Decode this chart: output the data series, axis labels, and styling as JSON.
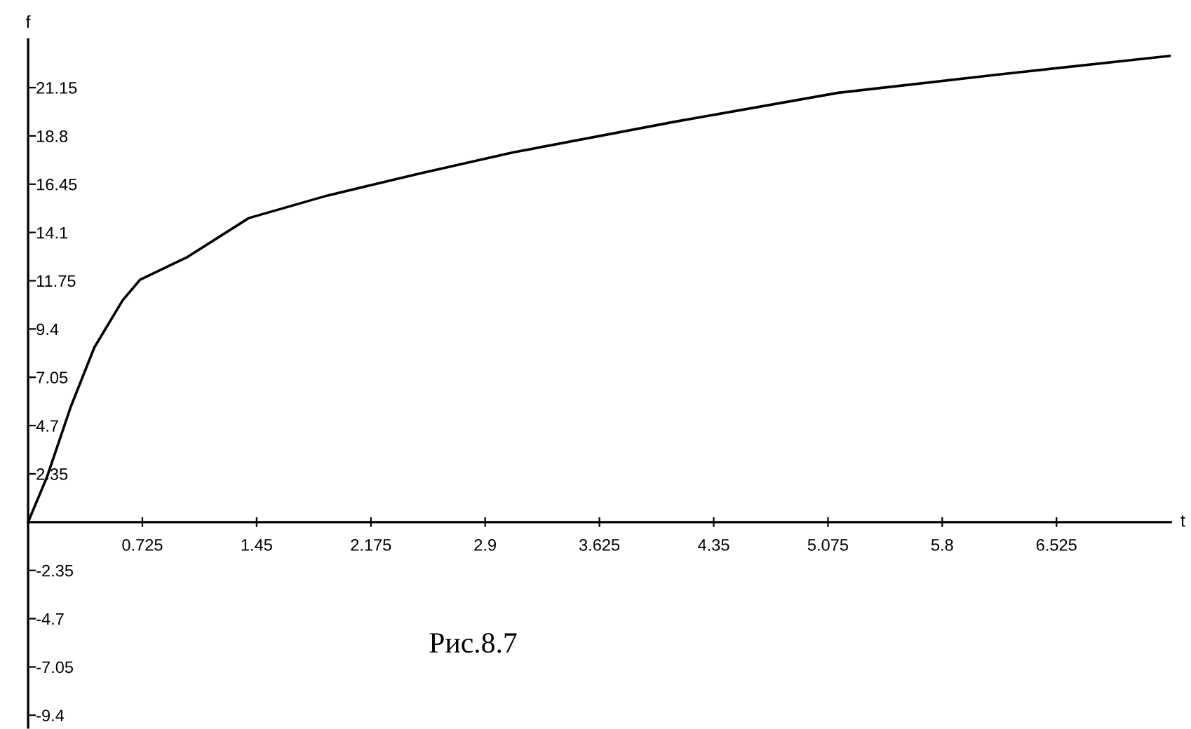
{
  "chart_data": {
    "type": "line",
    "xlabel": "t",
    "ylabel": "f",
    "annotations": [
      "Рис.8.7"
    ],
    "x": [
      0,
      0.12,
      0.27,
      0.42,
      0.6,
      0.71,
      1.01,
      1.4,
      1.9,
      2.5,
      3.08,
      4.11,
      5.14,
      6.17,
      7.25
    ],
    "series": [
      {
        "color": "#000000",
        "values": [
          0,
          2.2,
          5.6,
          8.5,
          10.8,
          11.8,
          12.9,
          14.8,
          15.9,
          17.0,
          18.0,
          19.5,
          20.9,
          21.8,
          22.7
        ]
      }
    ],
    "xlim": [
      0,
      7.25
    ],
    "ylim": [
      -10,
      23.5
    ],
    "xticks": [
      0.725,
      1.45,
      2.175,
      2.9,
      3.625,
      4.35,
      5.075,
      5.8,
      6.525
    ],
    "yticks": [
      -9.4,
      -7.05,
      -4.7,
      -2.35,
      2.35,
      4.7,
      7.05,
      9.4,
      11.75,
      14.1,
      16.45,
      18.8,
      21.15
    ],
    "grid": false,
    "legend": false,
    "marker": "none",
    "line_style": "solid"
  }
}
